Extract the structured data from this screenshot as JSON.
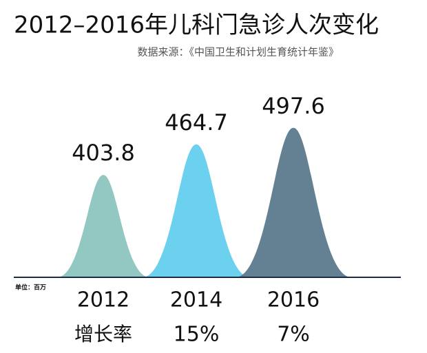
{
  "chart_data": {
    "type": "peak",
    "title": "2012–2016年儿科门急诊人次变化",
    "subtitle": "数据来源：《中国卫生和计划生育统计年鉴》",
    "unit_note": "单位：百万",
    "categories": [
      "2012",
      "2014",
      "2016"
    ],
    "values": [
      403.8,
      464.7,
      497.6
    ],
    "colors": [
      "#8cc5be",
      "#63cfee",
      "#5b7a8c"
    ],
    "ylim": [
      200,
      500
    ],
    "growth": {
      "label": "增长率",
      "values": [
        null,
        15,
        7
      ],
      "value_labels": [
        null,
        "15%",
        "7%"
      ]
    }
  }
}
